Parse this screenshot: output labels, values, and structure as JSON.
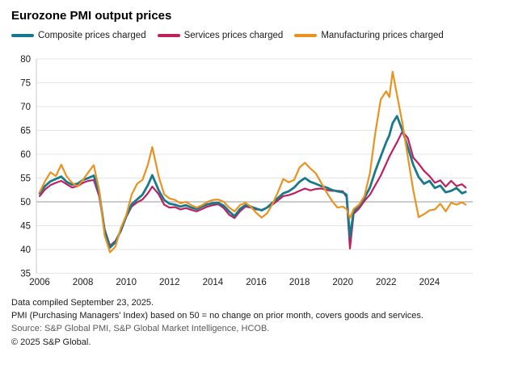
{
  "title": "Eurozone PMI output prices",
  "footer": {
    "line1": "Data compiled September 23, 2025.",
    "line2": "PMI (Purchasing Managers' Index) based on 50 = no change on prior month, covers goods and services.",
    "line3": "Source: S&P Global PMI, S&P Global Market Intelligence, HCOB.",
    "line4": "© 2025 S&P Global."
  },
  "chart_data": {
    "type": "line",
    "title": "Eurozone PMI output prices",
    "xlabel": "",
    "ylabel": "",
    "grid": true,
    "legend_position": "top",
    "ylim": [
      35,
      80
    ],
    "ytick_step": 5,
    "xlim": [
      2005.85,
      2026.0
    ],
    "xticks": [
      2006,
      2008,
      2010,
      2012,
      2014,
      2016,
      2018,
      2020,
      2022,
      2024
    ],
    "reference_line": 50,
    "axis_color": "#c9c9c9",
    "grid_color": "#e4e4e4",
    "reference_color": "#9a9a9a",
    "tick_text_color": "#1a1a1a",
    "x": [
      2006.0,
      2006.25,
      2006.5,
      2006.75,
      2007.0,
      2007.25,
      2007.5,
      2007.75,
      2008.0,
      2008.25,
      2008.5,
      2008.75,
      2009.0,
      2009.25,
      2009.5,
      2009.75,
      2010.0,
      2010.25,
      2010.5,
      2010.75,
      2011.0,
      2011.2,
      2011.5,
      2011.75,
      2012.0,
      2012.25,
      2012.5,
      2012.75,
      2013.0,
      2013.25,
      2013.5,
      2013.75,
      2014.0,
      2014.25,
      2014.5,
      2014.75,
      2015.0,
      2015.25,
      2015.5,
      2015.75,
      2016.0,
      2016.25,
      2016.5,
      2016.75,
      2017.0,
      2017.25,
      2017.5,
      2017.75,
      2018.0,
      2018.25,
      2018.5,
      2018.75,
      2019.0,
      2019.25,
      2019.5,
      2019.75,
      2020.0,
      2020.17,
      2020.33,
      2020.5,
      2020.75,
      2021.0,
      2021.25,
      2021.5,
      2021.75,
      2022.0,
      2022.15,
      2022.3,
      2022.5,
      2022.75,
      2023.0,
      2023.25,
      2023.5,
      2023.75,
      2024.0,
      2024.25,
      2024.5,
      2024.75,
      2025.0,
      2025.25,
      2025.5,
      2025.67
    ],
    "series": [
      {
        "name": "Composite prices charged",
        "color": "#19798c",
        "width": 2.8,
        "values": [
          51.8,
          53.3,
          54.3,
          54.8,
          55.3,
          54.2,
          53.6,
          53.8,
          54.6,
          55.0,
          55.5,
          52.0,
          44.0,
          40.4,
          41.5,
          44.0,
          47.0,
          49.5,
          50.5,
          51.5,
          53.5,
          55.6,
          52.4,
          50.4,
          49.6,
          49.4,
          49.0,
          49.3,
          48.8,
          48.5,
          49.0,
          49.5,
          49.7,
          49.8,
          49.2,
          48.0,
          47.0,
          48.5,
          49.3,
          49.0,
          48.6,
          48.2,
          48.8,
          49.8,
          50.8,
          51.8,
          52.2,
          53.0,
          54.2,
          55.0,
          54.2,
          53.8,
          53.3,
          53.0,
          52.5,
          52.2,
          52.0,
          51.5,
          42.6,
          48.0,
          49.2,
          50.8,
          53.0,
          56.5,
          59.5,
          62.5,
          64.0,
          66.5,
          68.0,
          65.0,
          61.5,
          57.8,
          55.2,
          53.8,
          54.4,
          52.9,
          53.4,
          52.0,
          52.3,
          52.9,
          51.8,
          52.1
        ]
      },
      {
        "name": "Services prices charged",
        "color": "#c01f5f",
        "width": 2.2,
        "values": [
          51.2,
          52.6,
          53.5,
          54.0,
          54.4,
          53.7,
          53.0,
          53.3,
          54.0,
          54.4,
          54.6,
          51.2,
          44.3,
          40.8,
          41.8,
          43.8,
          46.8,
          49.0,
          49.9,
          50.5,
          51.8,
          53.2,
          51.6,
          49.4,
          48.8,
          48.9,
          48.4,
          48.7,
          48.3,
          48.0,
          48.5,
          49.0,
          49.3,
          49.5,
          48.7,
          47.3,
          46.6,
          48.0,
          49.0,
          48.8,
          48.4,
          48.3,
          48.8,
          49.4,
          50.3,
          51.2,
          51.4,
          51.8,
          52.3,
          52.8,
          52.4,
          52.7,
          52.8,
          52.5,
          52.3,
          52.3,
          52.2,
          51.0,
          40.2,
          47.5,
          48.6,
          50.2,
          51.5,
          53.5,
          55.5,
          58.0,
          59.5,
          60.8,
          62.5,
          64.8,
          63.4,
          59.3,
          58.0,
          56.5,
          55.4,
          54.0,
          54.5,
          53.2,
          54.4,
          53.3,
          53.7,
          53.0
        ]
      },
      {
        "name": "Manufacturing prices charged",
        "color": "#ea9220",
        "width": 2.2,
        "values": [
          52.0,
          54.3,
          56.2,
          55.4,
          57.8,
          55.3,
          54.0,
          53.2,
          54.6,
          56.2,
          57.7,
          52.5,
          43.0,
          39.4,
          40.6,
          44.5,
          47.2,
          51.5,
          53.8,
          54.6,
          57.8,
          61.5,
          55.3,
          51.6,
          50.7,
          50.4,
          49.7,
          50.0,
          49.3,
          48.8,
          49.3,
          50.0,
          50.4,
          50.5,
          50.0,
          48.8,
          48.0,
          49.3,
          49.8,
          49.0,
          47.7,
          46.7,
          47.6,
          49.5,
          52.0,
          54.8,
          54.1,
          54.6,
          57.2,
          58.2,
          57.0,
          56.0,
          54.0,
          52.0,
          50.2,
          48.8,
          49.0,
          48.5,
          46.6,
          48.5,
          49.4,
          51.2,
          56.0,
          64.5,
          71.5,
          73.2,
          72.0,
          77.3,
          72.5,
          66.5,
          59.5,
          52.5,
          46.8,
          47.4,
          48.2,
          48.4,
          49.6,
          48.0,
          49.8,
          49.4,
          49.9,
          49.4
        ]
      }
    ]
  }
}
